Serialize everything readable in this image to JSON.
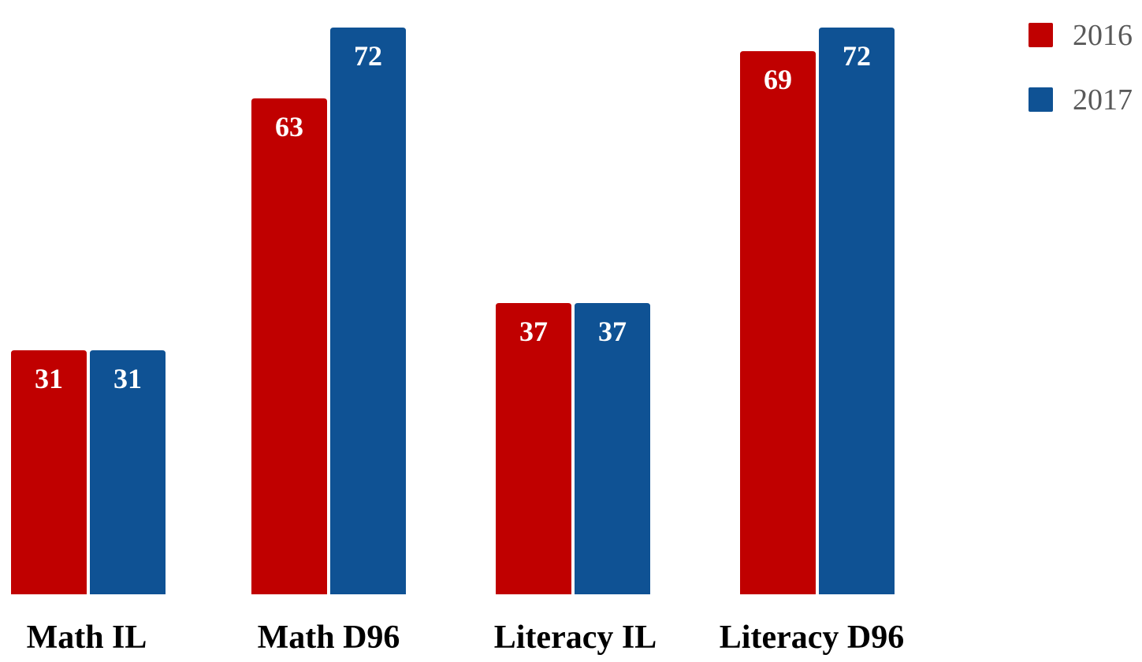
{
  "chart_data": {
    "type": "bar",
    "title": "",
    "xlabel": "",
    "ylabel": "",
    "categories": [
      "Math IL",
      "Math D96",
      "Literacy IL",
      "Literacy D96"
    ],
    "series": [
      {
        "name": "2016",
        "color": "#c00000",
        "values": [
          31,
          63,
          37,
          69
        ]
      },
      {
        "name": "2017",
        "color": "#0f5294",
        "values": [
          31,
          72,
          37,
          72
        ]
      }
    ],
    "ylim": [
      0,
      74
    ],
    "grid": false,
    "legend_position": "top-right",
    "data_labels": true
  }
}
